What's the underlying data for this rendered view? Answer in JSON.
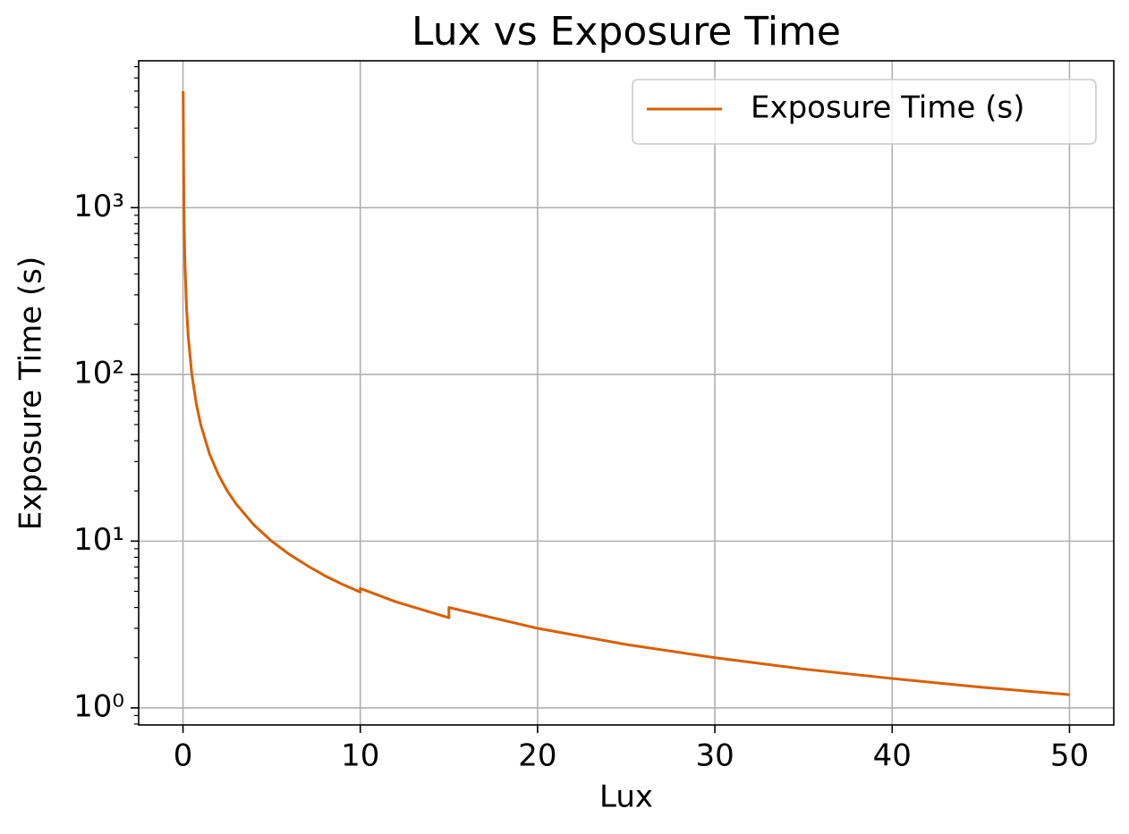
{
  "chart_data": {
    "type": "line",
    "title": "Lux vs Exposure Time",
    "xlabel": "Lux",
    "ylabel": "Exposure Time (s)",
    "x": [
      0.01,
      0.05,
      0.1,
      0.2,
      0.3,
      0.5,
      0.75,
      1,
      1.5,
      2,
      2.5,
      3,
      4,
      5,
      6,
      7,
      8,
      9,
      10,
      10,
      12,
      15,
      15,
      20,
      25,
      30,
      35,
      40,
      45,
      50
    ],
    "series": [
      {
        "name": "Exposure Time (s)",
        "color": "#d95f02",
        "values": [
          5000,
          1000,
          500,
          250,
          167,
          100,
          66.7,
          50,
          33.3,
          25,
          20,
          16.7,
          12.5,
          10,
          8.33,
          7.14,
          6.2,
          5.5,
          4.95,
          5.2,
          4.33,
          3.47,
          4.0,
          3.0,
          2.4,
          2.0,
          1.71,
          1.5,
          1.33,
          1.2
        ]
      }
    ],
    "xlim": [
      -2.5,
      52.5
    ],
    "xticks": [
      0,
      10,
      20,
      30,
      40,
      50
    ],
    "ylim": [
      0.79,
      7600
    ],
    "yscale": "log",
    "yticks": [
      {
        "value": 1,
        "label": "10⁰"
      },
      {
        "value": 10,
        "label": "10¹"
      },
      {
        "value": 100,
        "label": "10²"
      },
      {
        "value": 1000,
        "label": "10³"
      }
    ],
    "yminorticks": [
      0.8,
      0.9,
      2,
      3,
      4,
      5,
      6,
      7,
      8,
      9,
      20,
      30,
      40,
      50,
      60,
      70,
      80,
      90,
      200,
      300,
      400,
      500,
      600,
      700,
      800,
      900,
      2000,
      3000,
      4000,
      5000,
      6000,
      7000
    ],
    "grid": true,
    "legend": "upper right"
  }
}
